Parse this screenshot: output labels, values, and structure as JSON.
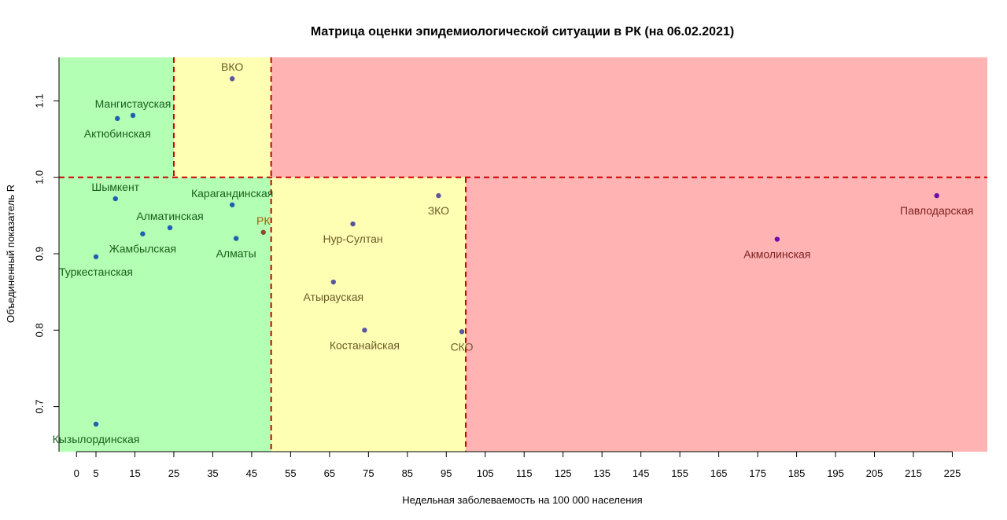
{
  "chart_data": {
    "type": "scatter",
    "title": "Матрица оценки эпидемиологической ситуации в РК (на 06.02.2021)",
    "xlabel": "Недельная заболеваемость на 100 000 населения",
    "ylabel": "Объединенный показатель R",
    "xlim": [
      -4.5,
      234
    ],
    "ylim": [
      0.641,
      1.157
    ],
    "x_ticks": [
      0,
      5,
      15,
      25,
      35,
      45,
      55,
      65,
      75,
      85,
      95,
      105,
      115,
      125,
      135,
      145,
      155,
      165,
      175,
      185,
      195,
      205,
      215,
      225
    ],
    "y_ticks": [
      0.7,
      0.8,
      0.9,
      1.0,
      1.1
    ],
    "y_tick_labels": [
      "0.7",
      "0.8",
      "0.9",
      "1.0",
      "1.1"
    ],
    "zones": [
      {
        "x0": -4.5,
        "x1": 50,
        "y0": 0.641,
        "y1": 1.157,
        "color": "#b3ffb3"
      },
      {
        "x0": 25,
        "x1": 50,
        "y0": 1.0,
        "y1": 1.157,
        "color": "#ffffb3"
      },
      {
        "x0": 50,
        "x1": 100,
        "y0": 0.641,
        "y1": 1.0,
        "color": "#ffffb3"
      },
      {
        "x0": 50,
        "x1": 234,
        "y0": 1.0,
        "y1": 1.157,
        "color": "#ffb3b3"
      },
      {
        "x0": 100,
        "x1": 234,
        "y0": 0.641,
        "y1": 1.0,
        "color": "#ffb3b3"
      }
    ],
    "threshold_lines": [
      {
        "orient": "h",
        "value": 1.0,
        "from": -4.5,
        "to": 234
      },
      {
        "orient": "v",
        "value": 25,
        "from": 1.0,
        "to": 1.157
      },
      {
        "orient": "v",
        "value": 50,
        "from": 0.641,
        "to": 1.157
      },
      {
        "orient": "v",
        "value": 100,
        "from": 0.641,
        "to": 1.0
      }
    ],
    "line_color": "#cc0000",
    "points": [
      {
        "name": "ВКО",
        "x": 40,
        "y": 1.129,
        "color": "#5a56a0",
        "label_color": "#6b5a2a",
        "dx": 0,
        "dy": -15
      },
      {
        "name": "Мангистауская",
        "x": 14.5,
        "y": 1.081,
        "color": "#1f5fb0",
        "label_color": "#1b5e20",
        "dx": 0,
        "dy": -15
      },
      {
        "name": "Актюбинская",
        "x": 10.5,
        "y": 1.077,
        "color": "#1f5fb0",
        "label_color": "#1b5e20",
        "dx": 0,
        "dy": 19
      },
      {
        "name": "Шымкент",
        "x": 10,
        "y": 0.972,
        "color": "#1f5fb0",
        "label_color": "#1b5e20",
        "dx": 0,
        "dy": -15
      },
      {
        "name": "Карагандинская",
        "x": 40,
        "y": 0.964,
        "color": "#1f5fb0",
        "label_color": "#1b5e20",
        "dx": 0,
        "dy": -15
      },
      {
        "name": "Алматинская",
        "x": 24,
        "y": 0.934,
        "color": "#1f5fb0",
        "label_color": "#1b5e20",
        "dx": 0,
        "dy": -15
      },
      {
        "name": "РК",
        "x": 48,
        "y": 0.928,
        "color": "#8a4a2a",
        "label_color": "#b35900",
        "dx": 0,
        "dy": -15
      },
      {
        "name": "Жамбылская",
        "x": 17,
        "y": 0.926,
        "color": "#1f5fb0",
        "label_color": "#1b5e20",
        "dx": 0,
        "dy": 19
      },
      {
        "name": "Алматы",
        "x": 41,
        "y": 0.92,
        "color": "#1f5fb0",
        "label_color": "#1b5e20",
        "dx": 0,
        "dy": 19
      },
      {
        "name": "Туркестанская",
        "x": 5,
        "y": 0.896,
        "color": "#1f5fb0",
        "label_color": "#1b5e20",
        "dx": 0,
        "dy": 19
      },
      {
        "name": "Кызылординская",
        "x": 5,
        "y": 0.677,
        "color": "#1f5fb0",
        "label_color": "#1b5e20",
        "dx": 0,
        "dy": 19
      },
      {
        "name": "ЗКО",
        "x": 93,
        "y": 0.976,
        "color": "#5a56a0",
        "label_color": "#6b5a2a",
        "dx": 0,
        "dy": 19
      },
      {
        "name": "Нур-Султан",
        "x": 71,
        "y": 0.939,
        "color": "#5a56a0",
        "label_color": "#6b5a2a",
        "dx": 0,
        "dy": 19
      },
      {
        "name": "Атырауская",
        "x": 66,
        "y": 0.863,
        "color": "#5a56a0",
        "label_color": "#6b5a2a",
        "dx": 0,
        "dy": 19
      },
      {
        "name": "Костанайская",
        "x": 74,
        "y": 0.8,
        "color": "#5a56a0",
        "label_color": "#6b5a2a",
        "dx": 0,
        "dy": 19
      },
      {
        "name": "СКО",
        "x": 99,
        "y": 0.798,
        "color": "#5a56a0",
        "label_color": "#6b5a2a",
        "dx": 0,
        "dy": 19
      },
      {
        "name": "Акмолинская",
        "x": 180,
        "y": 0.919,
        "color": "#6a0dad",
        "label_color": "#7a1f1f",
        "dx": 0,
        "dy": 19
      },
      {
        "name": "Павлодарская",
        "x": 221,
        "y": 0.976,
        "color": "#6a0dad",
        "label_color": "#7a1f1f",
        "dx": 0,
        "dy": 19
      }
    ]
  }
}
